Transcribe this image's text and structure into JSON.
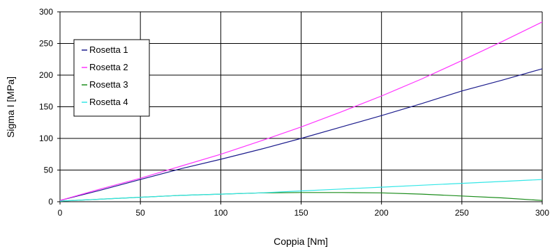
{
  "chart_data": {
    "type": "line",
    "title": "",
    "xlabel": "Coppia [Nm]",
    "ylabel": "Sigma I [MPa]",
    "xlim": [
      0,
      300
    ],
    "ylim": [
      0,
      300
    ],
    "xticks": [
      0,
      50,
      100,
      150,
      200,
      250,
      300
    ],
    "yticks": [
      0,
      50,
      100,
      150,
      200,
      250,
      300
    ],
    "grid": true,
    "legend_position": "top-left",
    "series": [
      {
        "name": "Rosetta 1",
        "color": "#1b1b8c",
        "x": [
          0,
          25,
          50,
          75,
          100,
          125,
          150,
          175,
          200,
          225,
          250,
          275,
          300
        ],
        "y": [
          2,
          18,
          35,
          52,
          67,
          83,
          100,
          118,
          136,
          155,
          175,
          192,
          210
        ]
      },
      {
        "name": "Rosetta 2",
        "color": "#ff33ff",
        "x": [
          0,
          25,
          50,
          75,
          100,
          125,
          150,
          175,
          200,
          225,
          250,
          275,
          300
        ],
        "y": [
          2,
          20,
          37,
          56,
          75,
          96,
          118,
          142,
          167,
          194,
          223,
          253,
          284
        ]
      },
      {
        "name": "Rosetta 3",
        "color": "#1a8c1a",
        "x": [
          0,
          25,
          50,
          75,
          100,
          125,
          150,
          175,
          200,
          225,
          250,
          275,
          300
        ],
        "y": [
          1,
          4,
          7,
          10,
          12,
          14,
          14.5,
          14.5,
          14,
          12,
          9,
          6,
          2
        ]
      },
      {
        "name": "Rosetta 4",
        "color": "#33e6e6",
        "x": [
          0,
          25,
          50,
          75,
          100,
          125,
          150,
          175,
          200,
          225,
          250,
          275,
          300
        ],
        "y": [
          1,
          4,
          7,
          10,
          12,
          14,
          17,
          20,
          23,
          26,
          29,
          32,
          35
        ]
      }
    ]
  }
}
